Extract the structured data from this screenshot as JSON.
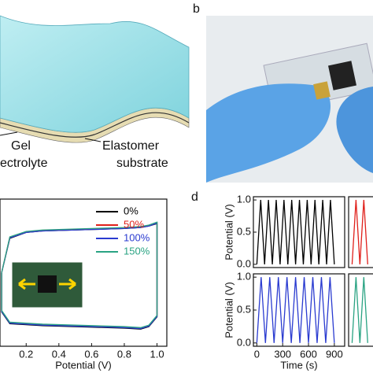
{
  "panel_labels": [
    "b",
    "d"
  ],
  "illustration": {
    "gel_line1": "Gel",
    "gel_line2": "ectrolyte",
    "elastomer_line1": "Elastomer",
    "elastomer_line2": "substrate"
  },
  "chart_data": [
    {
      "type": "line",
      "xlabel": "Potential (V)",
      "x": [
        0.05,
        0.1,
        0.2,
        0.3,
        0.4,
        0.5,
        0.6,
        0.7,
        0.8,
        0.9,
        0.95,
        1.0,
        1.0,
        0.95,
        0.9,
        0.8,
        0.7,
        0.6,
        0.5,
        0.4,
        0.3,
        0.2,
        0.1,
        0.05,
        0.05
      ],
      "xlim": [
        0.04,
        1.06
      ],
      "ylim": [
        -1.4,
        1.6
      ],
      "xticks": [
        0.2,
        0.4,
        0.6,
        0.8,
        {
          "value": 1,
          "label": "1.0"
        }
      ],
      "legend": "upper right",
      "series": [
        {
          "name": "0%",
          "color": "#000000",
          "values": [
            0.1,
            0.8,
            0.92,
            0.95,
            0.96,
            0.97,
            0.98,
            0.99,
            1.0,
            1.02,
            1.05,
            1.1,
            -0.8,
            -1.0,
            -1.05,
            -1.03,
            -1.02,
            -1.01,
            -1.0,
            -0.99,
            -0.98,
            -0.96,
            -0.94,
            -0.7,
            0.1
          ]
        },
        {
          "name": "50%",
          "color": "#e0201b",
          "values": [
            0.1,
            0.82,
            0.93,
            0.96,
            0.97,
            0.98,
            0.99,
            1.0,
            1.01,
            1.03,
            1.06,
            1.12,
            -0.78,
            -0.98,
            -1.03,
            -1.01,
            -1.0,
            -0.99,
            -0.98,
            -0.97,
            -0.96,
            -0.94,
            -0.92,
            -0.68,
            0.1
          ]
        },
        {
          "name": "100%",
          "color": "#2a3bd0",
          "values": [
            0.1,
            0.81,
            0.92,
            0.95,
            0.96,
            0.97,
            0.98,
            0.99,
            1.0,
            1.02,
            1.05,
            1.11,
            -0.79,
            -0.99,
            -1.04,
            -1.02,
            -1.01,
            -1.0,
            -0.99,
            -0.98,
            -0.97,
            -0.95,
            -0.93,
            -0.69,
            0.1
          ]
        },
        {
          "name": "150%",
          "color": "#2aa383",
          "values": [
            0.1,
            0.83,
            0.94,
            0.97,
            0.98,
            0.99,
            1.0,
            1.01,
            1.02,
            1.04,
            1.07,
            1.13,
            -0.77,
            -0.97,
            -1.02,
            -1.0,
            -0.99,
            -0.98,
            -0.97,
            -0.96,
            -0.95,
            -0.93,
            -0.91,
            -0.67,
            0.1
          ]
        }
      ]
    },
    {
      "type": "line",
      "ylabel": "Potential (V)",
      "x": [
        0,
        45,
        90,
        135,
        180,
        225,
        270,
        315,
        360,
        405,
        450,
        495,
        540,
        585,
        630,
        675,
        720,
        765,
        810,
        855,
        900
      ],
      "xlim": [
        -40,
        1020
      ],
      "ylim": [
        -0.05,
        1.05
      ],
      "yticks": [
        {
          "value": 0,
          "label": "0.0"
        },
        0.5,
        {
          "value": 1,
          "label": "1.0"
        }
      ],
      "series": [
        {
          "color": "#000000",
          "values": [
            0,
            1,
            0,
            1,
            0,
            1,
            0,
            1,
            0,
            1,
            0,
            1,
            0,
            1,
            0,
            1,
            0,
            1,
            0,
            1,
            0
          ]
        }
      ]
    },
    {
      "type": "line",
      "ylabel": "Potential (V)",
      "xlabel": "Time (s)",
      "x": [
        0,
        50,
        100,
        150,
        200,
        250,
        300,
        350,
        400,
        450,
        500,
        550,
        600,
        650,
        700,
        750,
        800,
        850,
        900
      ],
      "xlim": [
        -40,
        1020
      ],
      "ylim": [
        -0.05,
        1.05
      ],
      "yticks": [
        {
          "value": 0,
          "label": "0.0"
        },
        0.5,
        {
          "value": 1,
          "label": "1.0"
        }
      ],
      "xticks": [
        0,
        300,
        600,
        900
      ],
      "series": [
        {
          "color": "#2a3bd0",
          "values": [
            0,
            1,
            0,
            1,
            0,
            1,
            0,
            1,
            0,
            1,
            0,
            1,
            0,
            1,
            0,
            1,
            0,
            1,
            0
          ]
        }
      ]
    },
    {
      "type": "line",
      "x": [
        0,
        45,
        90,
        135,
        180
      ],
      "xlim": [
        -40,
        1020
      ],
      "ylim": [
        -0.05,
        1.05
      ],
      "series": [
        {
          "color": "#e0201b",
          "values": [
            0,
            1,
            0,
            1,
            0
          ]
        }
      ]
    },
    {
      "type": "line",
      "x": [
        0,
        45,
        90,
        135,
        180
      ],
      "xlim": [
        -40,
        1020
      ],
      "ylim": [
        -0.05,
        1.05
      ],
      "series": [
        {
          "color": "#2aa383",
          "values": [
            0,
            1,
            0,
            1,
            0
          ]
        }
      ]
    }
  ]
}
